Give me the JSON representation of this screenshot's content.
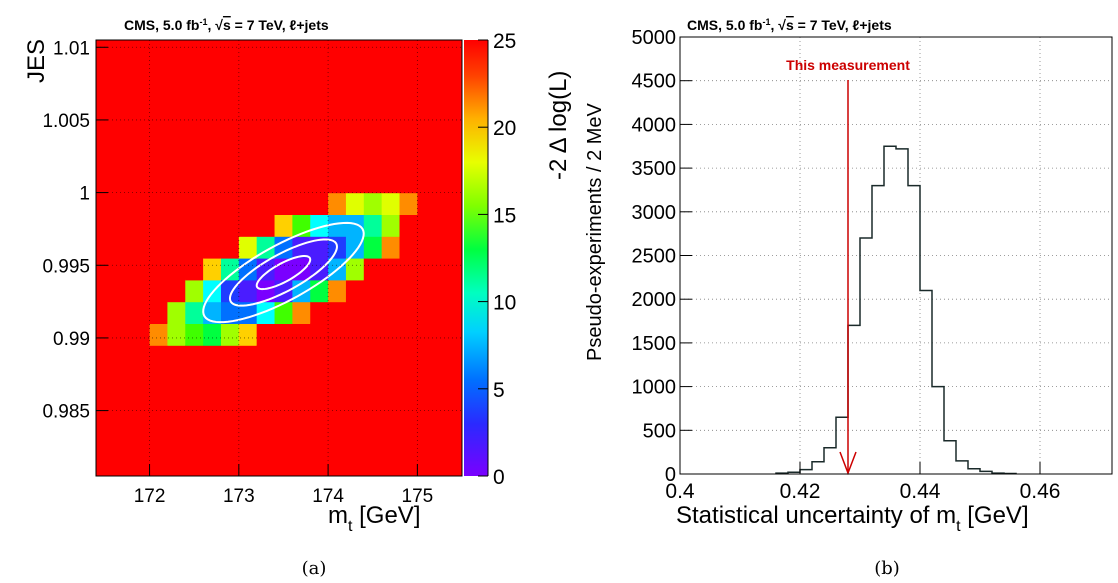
{
  "colors": {
    "heat_palette": [
      "#7a00ff",
      "#4a1cff",
      "#1f3cff",
      "#0070ff",
      "#00b4ff",
      "#00ffff",
      "#00ff9a",
      "#00ff40",
      "#40ff00",
      "#a0ff00",
      "#e0ff00",
      "#ffd000",
      "#ff8c00",
      "#ff0000"
    ],
    "contour": "#ffffff",
    "arrow": "#cc0000",
    "hist_line": "#1a2a2a"
  },
  "chart_data": [
    {
      "type": "heatmap",
      "header": {
        "prefix": "CMS, 5.0 fb",
        "sup": "-1",
        "mid": ",  √",
        "sqrt": "s",
        "suffix": " = 7 TeV, ℓ+jets"
      },
      "xlabel": {
        "main": "m",
        "sub": "t",
        "rest": " [GeV]"
      },
      "ylabel": "JES",
      "zlabel": "-2 Δ log(L)",
      "xlim": [
        171.4,
        175.5
      ],
      "ylim": [
        0.9805,
        1.0105
      ],
      "zlim": [
        0,
        25
      ],
      "xticks": [
        {
          "v": 172,
          "label": "172"
        },
        {
          "v": 173,
          "label": "173"
        },
        {
          "v": 174,
          "label": "174"
        },
        {
          "v": 175,
          "label": "175"
        }
      ],
      "yticks": [
        {
          "v": 0.985,
          "label": "0.985"
        },
        {
          "v": 0.99,
          "label": "0.99"
        },
        {
          "v": 0.995,
          "label": "0.995"
        },
        {
          "v": 1.0,
          "label": "1"
        },
        {
          "v": 1.005,
          "label": "1.005"
        },
        {
          "v": 1.01,
          "label": "1.01"
        }
      ],
      "zticks": [
        {
          "v": 0,
          "label": "0"
        },
        {
          "v": 5,
          "label": "5"
        },
        {
          "v": 10,
          "label": "10"
        },
        {
          "v": 15,
          "label": "15"
        },
        {
          "v": 20,
          "label": "20"
        },
        {
          "v": 25,
          "label": "25"
        }
      ],
      "minimum": {
        "mt": 173.5,
        "jes": 0.9945
      },
      "cell_size": {
        "mt": 0.2,
        "jes": 0.0015
      },
      "contour_levels": [
        1,
        4,
        9
      ],
      "grid": true
    },
    {
      "type": "bar",
      "header": {
        "prefix": "CMS, 5.0 fb",
        "sup": "-1",
        "mid": ",  √",
        "sqrt": "s",
        "suffix": " = 7 TeV, ℓ+jets"
      },
      "xlabel": {
        "main": "Statistical uncertainty of m",
        "sub": "t",
        "rest": " [GeV]"
      },
      "ylabel": "Pseudo-experiments / 2 MeV",
      "xlim": [
        0.4,
        0.472
      ],
      "ylim": [
        0,
        5000
      ],
      "xticks": [
        {
          "v": 0.4,
          "label": "0.4"
        },
        {
          "v": 0.42,
          "label": "0.42"
        },
        {
          "v": 0.44,
          "label": "0.44"
        },
        {
          "v": 0.46,
          "label": "0.46"
        }
      ],
      "yticks": [
        {
          "v": 0,
          "label": "0"
        },
        {
          "v": 500,
          "label": "500"
        },
        {
          "v": 1000,
          "label": "1000"
        },
        {
          "v": 1500,
          "label": "1500"
        },
        {
          "v": 2000,
          "label": "2000"
        },
        {
          "v": 2500,
          "label": "2500"
        },
        {
          "v": 3000,
          "label": "3000"
        },
        {
          "v": 3500,
          "label": "3500"
        },
        {
          "v": 4000,
          "label": "4000"
        },
        {
          "v": 4500,
          "label": "4500"
        },
        {
          "v": 5000,
          "label": "5000"
        }
      ],
      "bin_edges_start": 0.416,
      "bin_width": 0.002,
      "values": [
        10,
        20,
        50,
        140,
        300,
        650,
        1700,
        2700,
        3300,
        3750,
        3720,
        3300,
        2100,
        1000,
        380,
        150,
        60,
        30,
        10,
        5
      ],
      "annotation": {
        "text": "This measurement",
        "x": 0.428
      },
      "grid": true
    }
  ],
  "captions": [
    "(a)",
    "(b)"
  ]
}
